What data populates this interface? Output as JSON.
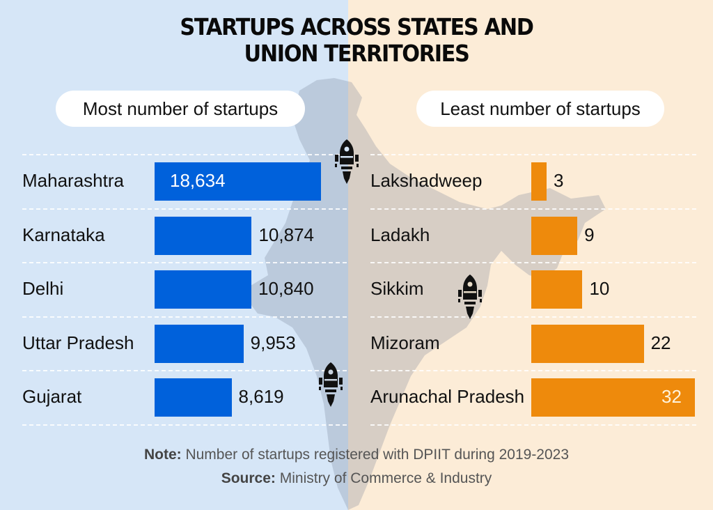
{
  "header": {
    "title_line1": "STARTUPS ACROSS STATES AND",
    "title_line2": "UNION TERRITORIES"
  },
  "colors": {
    "left_background": "#d6e6f7",
    "right_background": "#fcecd7",
    "blue_bar": "#0061db",
    "orange_bar": "#ee8a0c",
    "map_fill": "#c2cbd6"
  },
  "icons": [
    "rocket-icon",
    "rocket-icon",
    "rocket-icon"
  ],
  "chart_data": [
    {
      "type": "bar",
      "orientation": "horizontal",
      "title": "Most number of startups",
      "categories": [
        "Maharashtra",
        "Karnataka",
        "Delhi",
        "Uttar Pradesh",
        "Gujarat"
      ],
      "values": [
        18634,
        10874,
        10840,
        9953,
        8619
      ],
      "value_labels": [
        "18,634",
        "10,874",
        "10,840",
        "9,953",
        "8,619"
      ],
      "xlabel": "",
      "ylabel": "",
      "grid": "dashed horizontal separators",
      "color": "#0061db"
    },
    {
      "type": "bar",
      "orientation": "horizontal",
      "title": "Least number of startups",
      "categories": [
        "Lakshadweep",
        "Ladakh",
        "Sikkim",
        "Mizoram",
        "Arunachal Pradesh"
      ],
      "values": [
        3,
        9,
        10,
        22,
        32
      ],
      "value_labels": [
        "3",
        "9",
        "10",
        "22",
        "32"
      ],
      "xlabel": "",
      "ylabel": "",
      "grid": "dashed horizontal separators",
      "color": "#ee8a0c"
    }
  ],
  "footer": {
    "note_label": "Note:",
    "note_text": " Number of startups registered with DPIIT during 2019-2023",
    "source_label": "Source:",
    "source_text": " Ministry of Commerce & Industry"
  }
}
